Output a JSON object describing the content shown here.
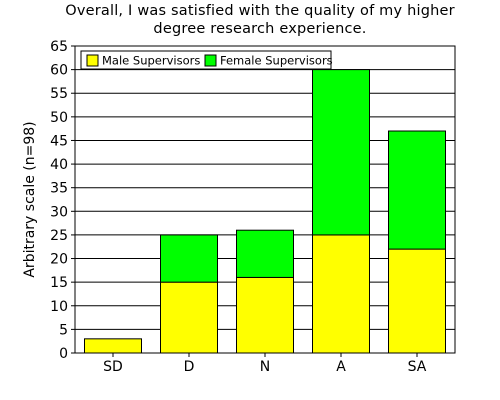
{
  "chart_data": {
    "type": "bar",
    "stacked": true,
    "title_lines": [
      "Overall, I was satisfied with the quality of my higher",
      "degree research experience."
    ],
    "xlabel": "",
    "ylabel": "Arbitrary scale (n=98)",
    "categories": [
      "SD",
      "D",
      "N",
      "A",
      "SA"
    ],
    "series": [
      {
        "name": "Male Supervisors",
        "color": "#ffff00",
        "values": [
          3,
          15,
          16,
          25,
          22
        ]
      },
      {
        "name": "Female Supervisors",
        "color": "#00ff00",
        "values": [
          0,
          10,
          10,
          35,
          25
        ]
      }
    ],
    "ylim": [
      0,
      65
    ],
    "yticks": [
      0,
      5,
      10,
      15,
      20,
      25,
      30,
      35,
      40,
      45,
      50,
      55,
      60,
      65
    ],
    "grid": "horizontal",
    "legend_position": "top-left"
  }
}
